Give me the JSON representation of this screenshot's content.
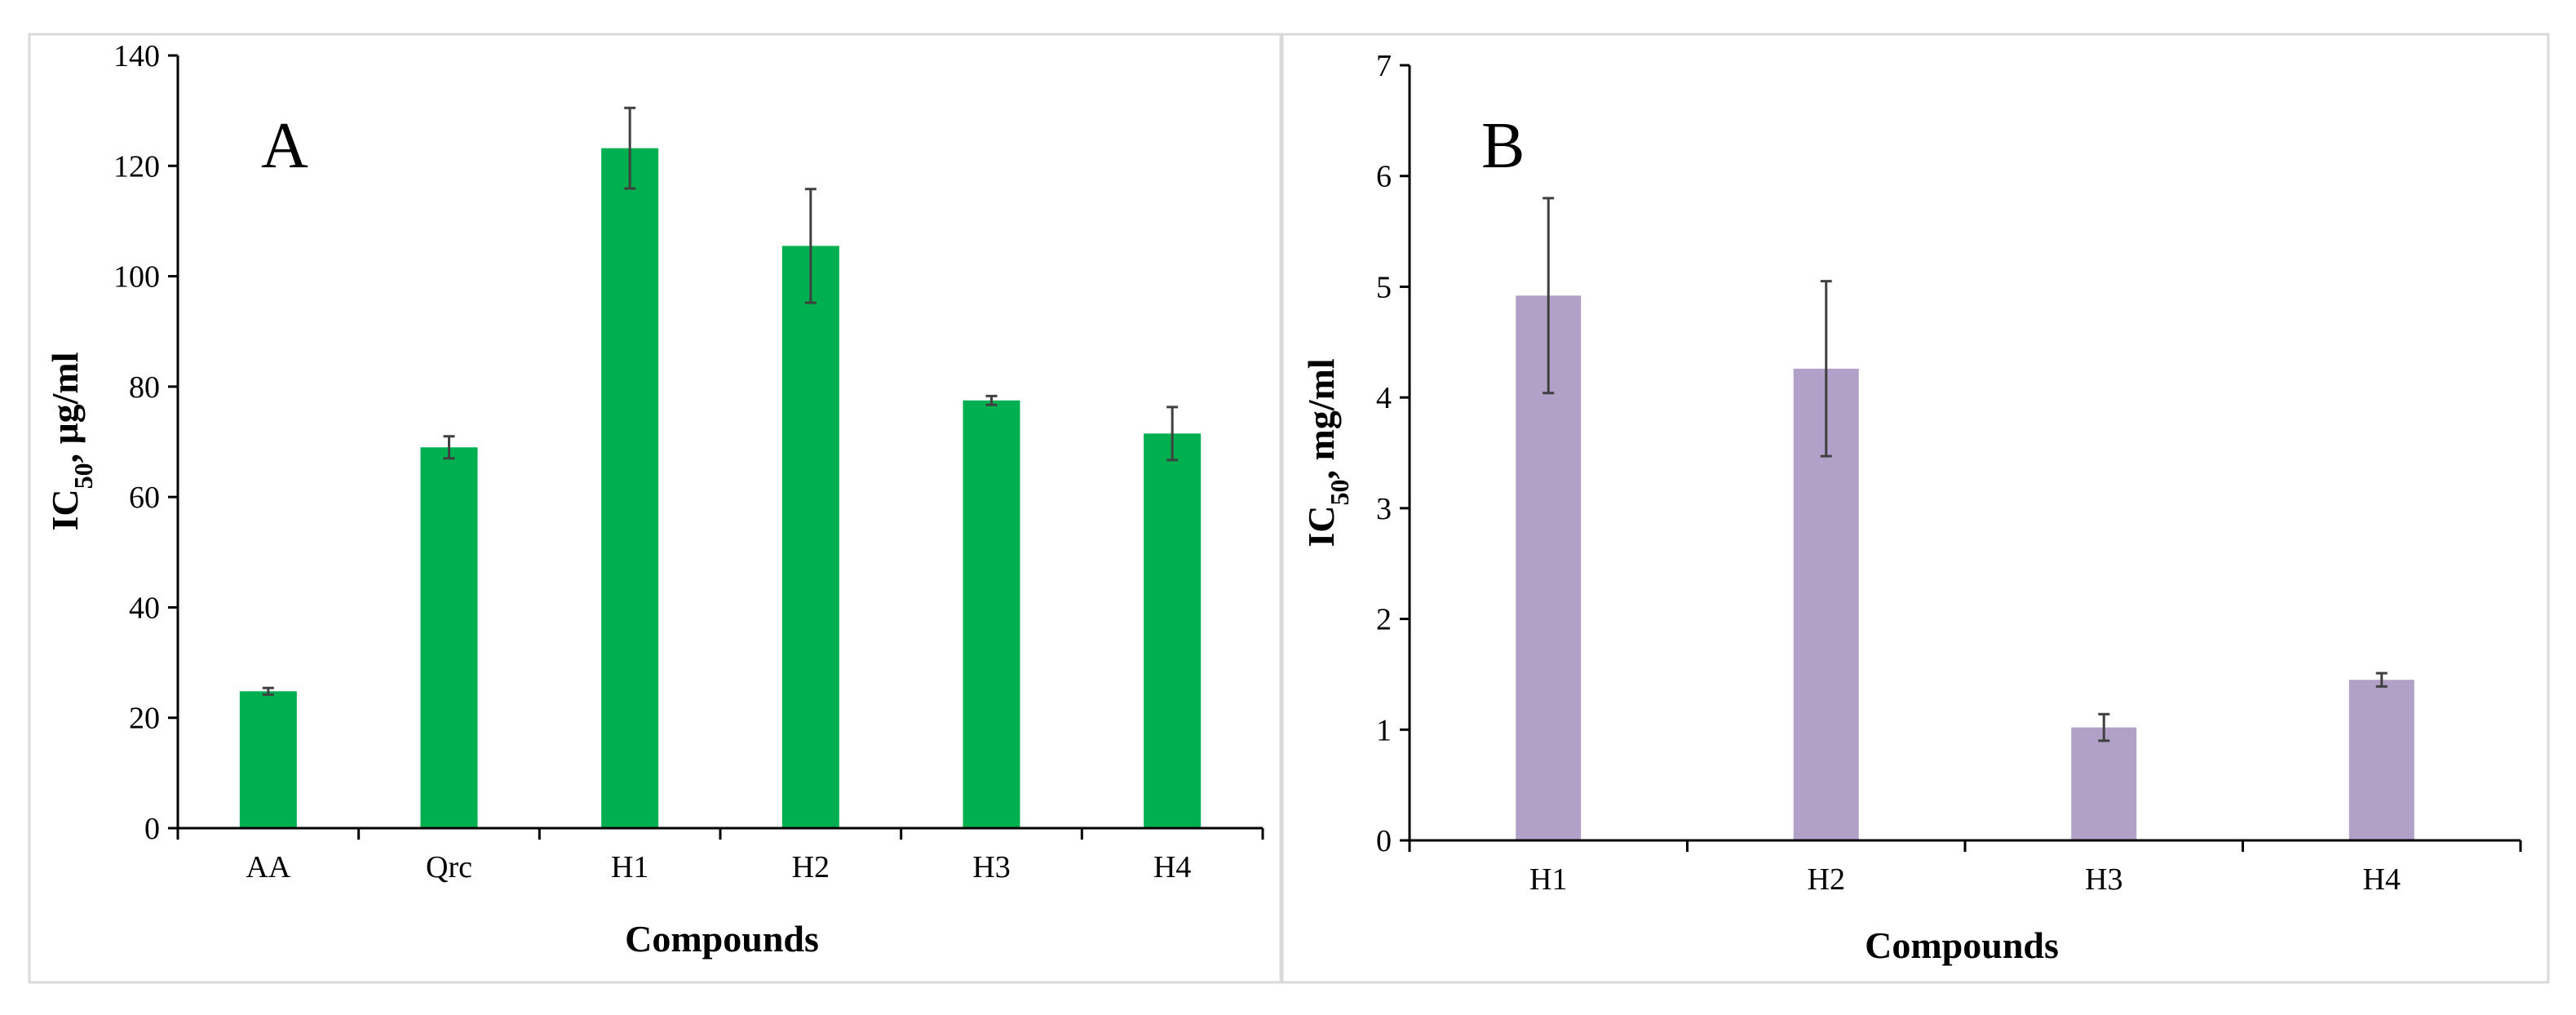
{
  "chart_data": [
    {
      "type": "bar",
      "panel": "A",
      "categories": [
        "AA",
        "Qrc",
        "H1",
        "H2",
        "H3",
        "H4"
      ],
      "values": [
        24.8,
        69.0,
        123.2,
        105.5,
        77.5,
        71.5
      ],
      "errors": [
        0.6,
        2.0,
        7.3,
        10.3,
        0.8,
        4.8
      ],
      "ylim": [
        0,
        140
      ],
      "yticks": [
        0,
        20,
        40,
        60,
        80,
        100,
        120,
        140
      ],
      "xlabel": "Compounds",
      "ylabel_main": "IC",
      "ylabel_sub": "50",
      "ylabel_rest": ", μg/ml",
      "bar_color": "#00b050",
      "grid": false,
      "legend": "none"
    },
    {
      "type": "bar",
      "panel": "B",
      "categories": [
        "H1",
        "H2",
        "H3",
        "H4"
      ],
      "values": [
        4.92,
        4.26,
        1.02,
        1.45
      ],
      "errors": [
        0.88,
        0.79,
        0.12,
        0.06
      ],
      "ylim": [
        0,
        7
      ],
      "yticks": [
        0,
        1,
        2,
        3,
        4,
        5,
        6,
        7
      ],
      "xlabel": "Compounds",
      "ylabel_main": "IC",
      "ylabel_sub": "50",
      "ylabel_rest": ", mg/ml",
      "bar_color": "#b1a0c7",
      "grid": false,
      "legend": "none"
    }
  ]
}
